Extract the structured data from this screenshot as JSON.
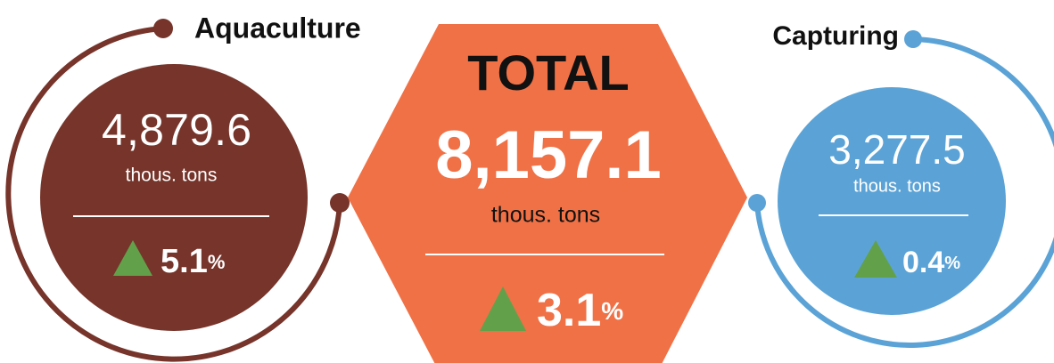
{
  "items": [
    {
      "name": "Aquaculture",
      "value": "4,879.6",
      "unit": "thous. tons",
      "change": "5.1",
      "percent_sign": "%"
    },
    {
      "name": "TOTAL",
      "value": "8,157.1",
      "unit": "thous. tons",
      "change": "3.1",
      "percent_sign": "%"
    },
    {
      "name": "Capturing",
      "value": "3,277.5",
      "unit": "thous. tons",
      "change": "0.4",
      "percent_sign": "%"
    }
  ]
}
